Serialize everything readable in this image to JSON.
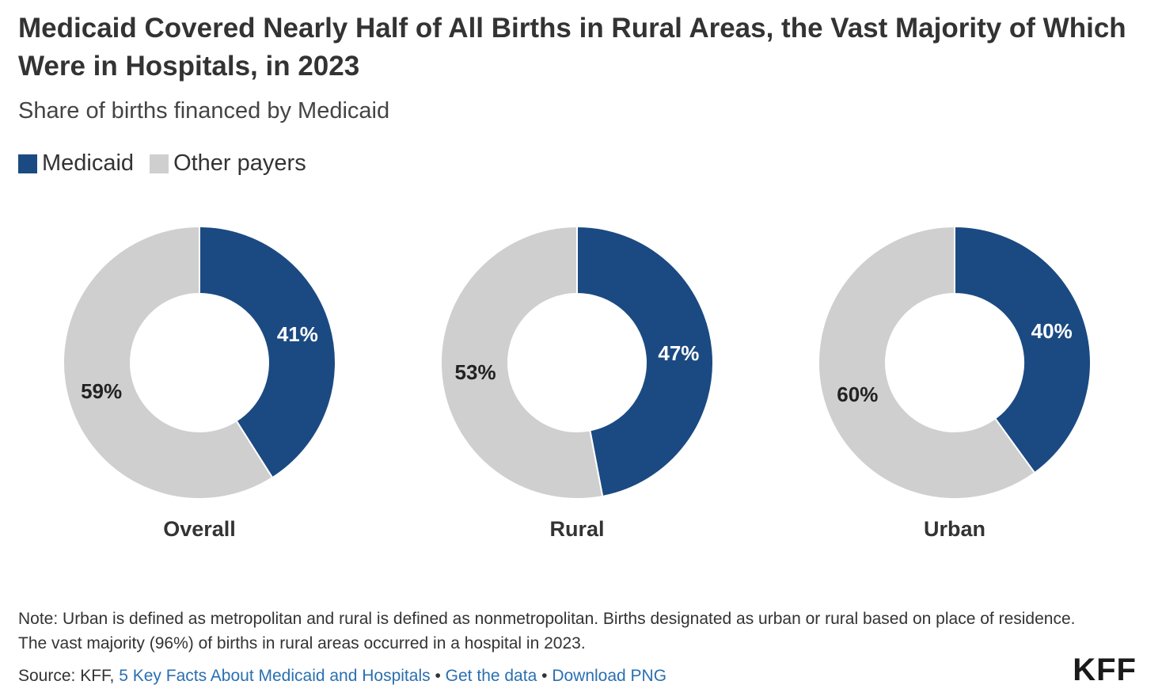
{
  "title": "Medicaid Covered Nearly Half of All Births in Rural Areas, the Vast Majority of Which Were in Hospitals, in 2023",
  "subtitle": "Share of births financed by Medicaid",
  "legend": [
    {
      "label": "Medicaid",
      "color": "#1b4a82"
    },
    {
      "label": "Other payers",
      "color": "#cfcfcf"
    }
  ],
  "chart_data": {
    "type": "pie",
    "subtype": "donut",
    "title": "Medicaid Covered Nearly Half of All Births in Rural Areas, the Vast Majority of Which Were in Hospitals, in 2023",
    "subtitle": "Share of births financed by Medicaid",
    "units": "%",
    "series_names": [
      "Medicaid",
      "Other payers"
    ],
    "colors": [
      "#1b4a82",
      "#cfcfcf"
    ],
    "label_colors": [
      "#ffffff",
      "#222222"
    ],
    "charts": [
      {
        "category": "Overall",
        "values": [
          41,
          59
        ],
        "labels": [
          "41%",
          "59%"
        ]
      },
      {
        "category": "Rural",
        "values": [
          47,
          53
        ],
        "labels": [
          "47%",
          "53%"
        ]
      },
      {
        "category": "Urban",
        "values": [
          40,
          60
        ],
        "labels": [
          "40%",
          "60%"
        ]
      }
    ]
  },
  "note": "Note: Urban is defined as metropolitan and rural is defined as nonmetropolitan. Births designated as urban or rural based on place of residence. The vast majority (96%) of births in rural areas occurred in a hospital in 2023.",
  "source": {
    "prefix": "Source: KFF,",
    "link1": "5 Key Facts About Medicaid and Hospitals",
    "sep": "•",
    "link2": "Get the data",
    "link3": "Download PNG"
  },
  "logo": "KFF"
}
